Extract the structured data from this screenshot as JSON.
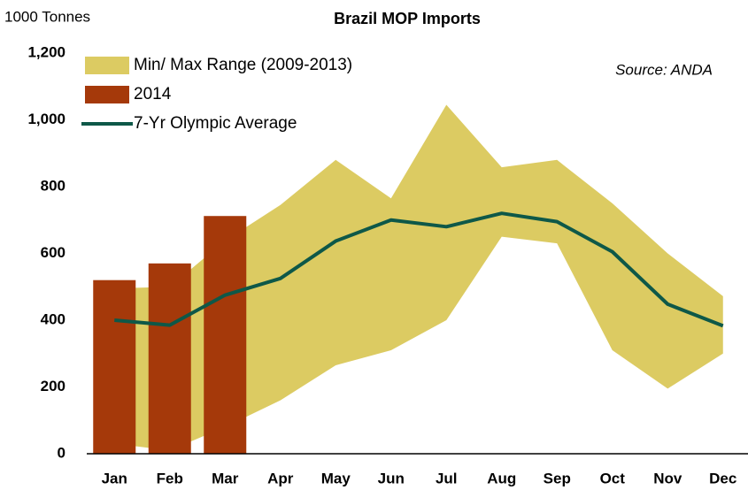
{
  "chart_data": {
    "type": "bar-line-range",
    "title": "Brazil MOP Imports",
    "y_axis_label": "1000 Tonnes",
    "annotation": "Source: ANDA",
    "categories": [
      "Jan",
      "Feb",
      "Mar",
      "Apr",
      "May",
      "Jun",
      "Jul",
      "Aug",
      "Sep",
      "Oct",
      "Nov",
      "Dec"
    ],
    "series": [
      {
        "name": "Min/ Max Range (2009-2013)",
        "kind": "range",
        "color": "#dccb62",
        "values": [
          495,
          500,
          638,
          745,
          880,
          765,
          1045,
          858,
          880,
          750,
          600,
          472
        ],
        "low_values": [
          30,
          10,
          80,
          160,
          265,
          310,
          400,
          650,
          630,
          310,
          195,
          300
        ]
      },
      {
        "name": "2014",
        "kind": "bar",
        "color": "#a5390a",
        "values": [
          520,
          570,
          712,
          null,
          null,
          null,
          null,
          null,
          null,
          null,
          null,
          null
        ]
      },
      {
        "name": "7-Yr Olympic Average",
        "kind": "line",
        "color": "#0e5848",
        "values": [
          400,
          385,
          475,
          525,
          637,
          700,
          680,
          720,
          695,
          605,
          448,
          383
        ]
      }
    ],
    "ylim": [
      0,
      1200
    ],
    "yticks": [
      0,
      200,
      400,
      600,
      800,
      {
        "value": 1000,
        "label": "1,000"
      },
      {
        "value": 1200,
        "label": "1,200"
      }
    ]
  }
}
